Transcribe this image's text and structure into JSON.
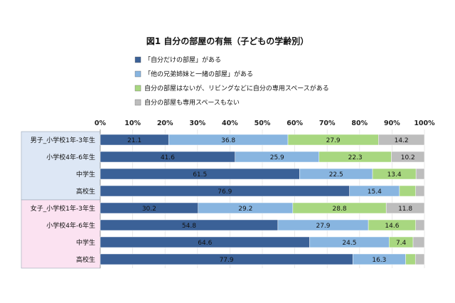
{
  "chart_data": {
    "type": "bar",
    "orientation": "horizontal",
    "stacked": true,
    "title": "図1 自分の部屋の有無（子どもの学齢別）",
    "xlim": [
      0,
      100
    ],
    "xticks": [
      "0%",
      "10%",
      "20%",
      "30%",
      "40%",
      "50%",
      "60%",
      "70%",
      "80%",
      "90%",
      "100%"
    ],
    "legend_position": "top",
    "groups": [
      {
        "name": "男子",
        "color": "#dde7f5"
      },
      {
        "name": "女子",
        "color": "#fbe2f1"
      }
    ],
    "categories": [
      "男子_小学校1年-3年生",
      "小学校4年-6年生",
      "中学生",
      "高校生",
      "女子_小学校1年-3年生",
      "小学校4年-6年生",
      "中学生",
      "高校生"
    ],
    "series": [
      {
        "name": "「自分だけの部屋」がある",
        "color": "#3b6197",
        "values": [
          21.1,
          41.6,
          61.5,
          76.9,
          30.2,
          54.8,
          64.6,
          77.9
        ]
      },
      {
        "name": "「他の兄弟姉妹と一緒の部屋」がある",
        "color": "#88b5e0",
        "values": [
          36.8,
          25.9,
          22.5,
          15.4,
          29.2,
          27.9,
          24.5,
          16.3
        ]
      },
      {
        "name": "自分の部屋はないが、リビングなどに自分の専用スペースがある",
        "color": "#a8d780",
        "values": [
          27.9,
          22.3,
          13.4,
          5.0,
          28.8,
          14.6,
          7.4,
          3.0
        ]
      },
      {
        "name": "自分の部屋も専用スペースもない",
        "color": "#bdbdbd",
        "values": [
          14.2,
          10.2,
          2.6,
          2.7,
          11.8,
          2.7,
          3.5,
          2.8
        ]
      }
    ],
    "labels": [
      [
        "21.1",
        "36.8",
        "27.9",
        "14.2"
      ],
      [
        "41.6",
        "25.9",
        "22.3",
        "10.2"
      ],
      [
        "61.5",
        "22.5",
        "13.4",
        ""
      ],
      [
        "76.9",
        "15.4",
        "",
        ""
      ],
      [
        "30.2",
        "29.2",
        "28.8",
        "11.8"
      ],
      [
        "54.8",
        "27.9",
        "14.6",
        ""
      ],
      [
        "64.6",
        "24.5",
        "7.4",
        ""
      ],
      [
        "77.9",
        "16.3",
        "",
        ""
      ]
    ]
  }
}
